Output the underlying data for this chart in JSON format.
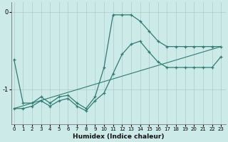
{
  "xlabel": "Humidex (Indice chaleur)",
  "bg_color": "#cceae8",
  "grid_color": "#aacccc",
  "line_color": "#2e7d72",
  "x_ticks": [
    0,
    1,
    2,
    3,
    4,
    5,
    6,
    7,
    8,
    9,
    10,
    11,
    12,
    13,
    14,
    15,
    16,
    17,
    18,
    19,
    20,
    21,
    22,
    23
  ],
  "y_ticks": [
    -1,
    0
  ],
  "ylim": [
    -1.45,
    0.12
  ],
  "xlim": [
    -0.3,
    23.5
  ],
  "line1_x": [
    0,
    1,
    2,
    3,
    4,
    5,
    6,
    7,
    8,
    9,
    10,
    11,
    12,
    13,
    14,
    15,
    16,
    17,
    18,
    19,
    20,
    21,
    22,
    23
  ],
  "line1_y": [
    -0.62,
    -1.18,
    -1.18,
    -1.1,
    -1.18,
    -1.1,
    -1.08,
    -1.18,
    -1.25,
    -1.1,
    -0.72,
    -0.04,
    -0.04,
    -0.04,
    -0.12,
    -0.25,
    -0.38,
    -0.45,
    -0.45,
    -0.45,
    -0.45,
    -0.45,
    -0.45,
    -0.45
  ],
  "line2_x": [
    0,
    1,
    2,
    3,
    4,
    5,
    6,
    7,
    8,
    9,
    10,
    11,
    12,
    13,
    14,
    15,
    16,
    17,
    18,
    19,
    20,
    21,
    22,
    23
  ],
  "line2_y": [
    -1.25,
    -1.25,
    -1.22,
    -1.15,
    -1.22,
    -1.15,
    -1.12,
    -1.22,
    -1.28,
    -1.15,
    -1.05,
    -0.8,
    -0.55,
    -0.42,
    -0.38,
    -0.52,
    -0.65,
    -0.72,
    -0.72,
    -0.72,
    -0.72,
    -0.72,
    -0.72,
    -0.58
  ],
  "line3_x": [
    0,
    23
  ],
  "line3_y": [
    -1.25,
    -0.45
  ]
}
